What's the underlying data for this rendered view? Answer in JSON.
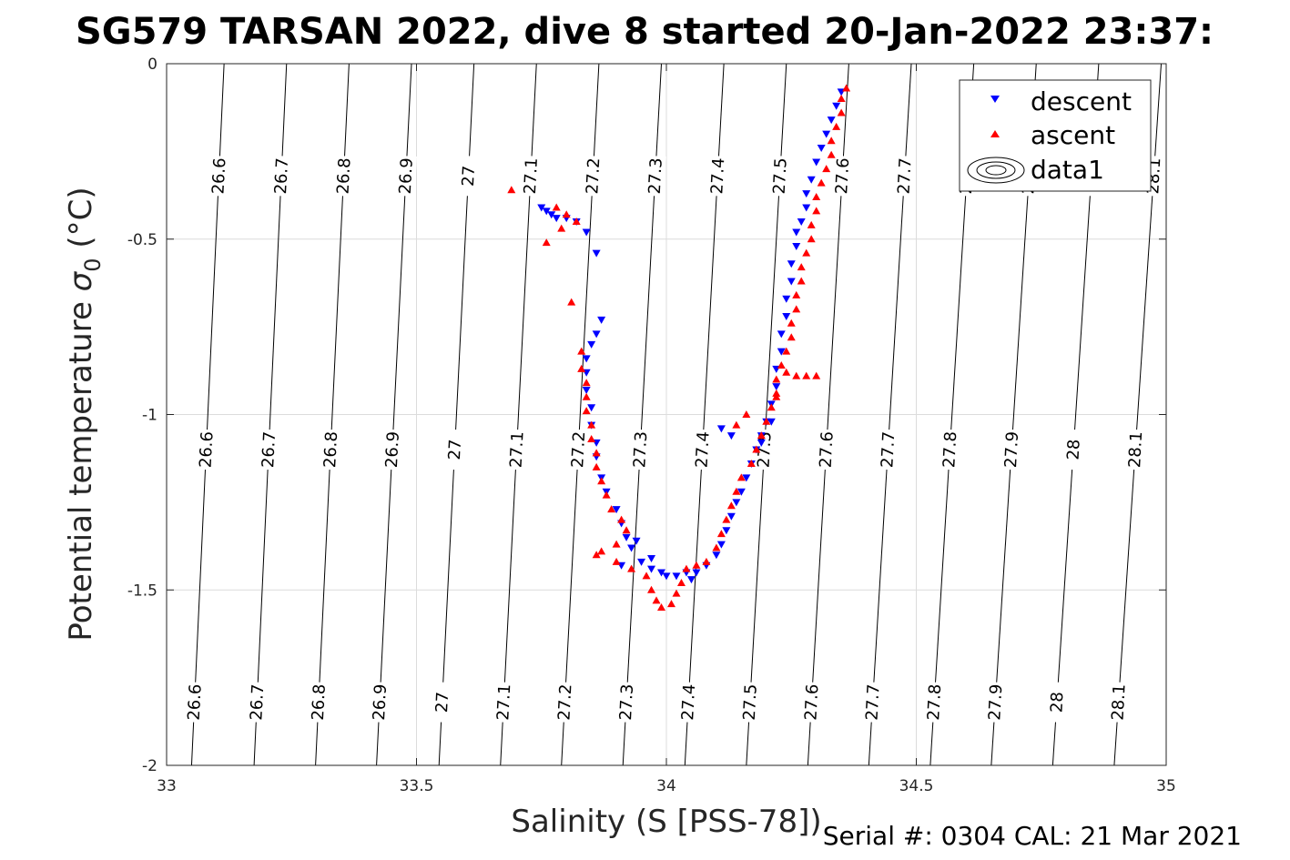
{
  "chart_data": {
    "type": "scatter",
    "title": "SG579 TARSAN 2022, dive 8 started 20-Jan-2022 23:37:",
    "xlabel": "Salinity (S [PSS-78])",
    "ylabel": "Potential temperature σ0 (°C)",
    "ylabel_main": "Potential temperature ",
    "ylabel_sigma": "σ",
    "ylabel_sub": "0",
    "ylabel_unit": " (°C)",
    "xlim": [
      33,
      35
    ],
    "ylim": [
      -2,
      0
    ],
    "xticks": [
      "33",
      "33.5",
      "34",
      "34.5",
      "35"
    ],
    "yticks": [
      "0",
      "-0.5",
      "-1",
      "-1.5",
      "-2"
    ],
    "grid": true,
    "legend_position": "top-right",
    "legend": [
      {
        "label": "descent",
        "marker": "down-triangle",
        "color": "#0000ff"
      },
      {
        "label": "ascent",
        "marker": "up-triangle",
        "color": "#ff0000"
      },
      {
        "label": "data1",
        "marker": "contour",
        "color": "#000000"
      }
    ],
    "isopycnals": [
      {
        "label": "26.6",
        "s_at_0": 33.115,
        "s_at_m2": 33.05
      },
      {
        "label": "26.7",
        "s_at_0": 33.24,
        "s_at_m2": 33.175
      },
      {
        "label": "26.8",
        "s_at_0": 33.365,
        "s_at_m2": 33.298
      },
      {
        "label": "26.9",
        "s_at_0": 33.49,
        "s_at_m2": 33.42
      },
      {
        "label": "27",
        "s_at_0": 33.615,
        "s_at_m2": 33.545
      },
      {
        "label": "27.1",
        "s_at_0": 33.74,
        "s_at_m2": 33.668
      },
      {
        "label": "27.2",
        "s_at_0": 33.865,
        "s_at_m2": 33.79
      },
      {
        "label": "27.3",
        "s_at_0": 33.99,
        "s_at_m2": 33.913
      },
      {
        "label": "27.4",
        "s_at_0": 34.115,
        "s_at_m2": 34.037
      },
      {
        "label": "27.5",
        "s_at_0": 34.24,
        "s_at_m2": 34.16
      },
      {
        "label": "27.6",
        "s_at_0": 34.365,
        "s_at_m2": 34.283
      },
      {
        "label": "27.7",
        "s_at_0": 34.49,
        "s_at_m2": 34.405
      },
      {
        "label": "27.8",
        "s_at_0": 34.615,
        "s_at_m2": 34.528
      },
      {
        "label": "27.9",
        "s_at_0": 34.74,
        "s_at_m2": 34.65
      },
      {
        "label": "28",
        "s_at_0": 34.865,
        "s_at_m2": 34.773
      },
      {
        "label": "28.1",
        "s_at_0": 34.99,
        "s_at_m2": 34.896
      }
    ],
    "isopycnal_label_rows_y": [
      -0.32,
      -1.1,
      -1.82
    ],
    "series": [
      {
        "name": "descent",
        "color": "#0000ff",
        "marker": "down-triangle",
        "points": [
          [
            33.75,
            -0.41
          ],
          [
            33.76,
            -0.42
          ],
          [
            33.77,
            -0.43
          ],
          [
            33.78,
            -0.44
          ],
          [
            33.8,
            -0.44
          ],
          [
            33.82,
            -0.45
          ],
          [
            33.84,
            -0.48
          ],
          [
            33.86,
            -0.54
          ],
          [
            33.87,
            -0.73
          ],
          [
            33.86,
            -0.77
          ],
          [
            33.85,
            -0.8
          ],
          [
            33.84,
            -0.84
          ],
          [
            33.84,
            -0.88
          ],
          [
            33.84,
            -0.93
          ],
          [
            33.85,
            -0.98
          ],
          [
            33.85,
            -1.03
          ],
          [
            33.86,
            -1.08
          ],
          [
            33.86,
            -1.12
          ],
          [
            33.87,
            -1.18
          ],
          [
            33.88,
            -1.22
          ],
          [
            33.9,
            -1.27
          ],
          [
            33.91,
            -1.31
          ],
          [
            33.92,
            -1.35
          ],
          [
            33.93,
            -1.38
          ],
          [
            33.95,
            -1.42
          ],
          [
            33.97,
            -1.44
          ],
          [
            33.99,
            -1.45
          ],
          [
            34.0,
            -1.46
          ],
          [
            34.02,
            -1.46
          ],
          [
            34.04,
            -1.45
          ],
          [
            34.06,
            -1.45
          ],
          [
            34.08,
            -1.43
          ],
          [
            34.1,
            -1.4
          ],
          [
            34.11,
            -1.37
          ],
          [
            34.12,
            -1.33
          ],
          [
            34.13,
            -1.29
          ],
          [
            34.14,
            -1.25
          ],
          [
            34.15,
            -1.22
          ],
          [
            34.16,
            -1.18
          ],
          [
            34.17,
            -1.14
          ],
          [
            34.18,
            -1.1
          ],
          [
            34.19,
            -1.06
          ],
          [
            34.2,
            -1.02
          ],
          [
            34.21,
            -0.97
          ],
          [
            34.22,
            -0.92
          ],
          [
            34.22,
            -0.87
          ],
          [
            34.23,
            -0.82
          ],
          [
            34.23,
            -0.77
          ],
          [
            34.24,
            -0.72
          ],
          [
            34.24,
            -0.67
          ],
          [
            34.25,
            -0.62
          ],
          [
            34.25,
            -0.57
          ],
          [
            34.26,
            -0.52
          ],
          [
            34.26,
            -0.48
          ],
          [
            34.27,
            -0.45
          ],
          [
            34.28,
            -0.41
          ],
          [
            34.28,
            -0.37
          ],
          [
            34.29,
            -0.33
          ],
          [
            34.3,
            -0.28
          ],
          [
            34.31,
            -0.24
          ],
          [
            34.32,
            -0.2
          ],
          [
            34.33,
            -0.16
          ],
          [
            34.34,
            -0.12
          ],
          [
            34.35,
            -0.08
          ],
          [
            34.11,
            -1.04
          ],
          [
            34.13,
            -1.06
          ],
          [
            34.21,
            -1.02
          ],
          [
            34.19,
            -1.08
          ],
          [
            33.97,
            -1.41
          ],
          [
            33.94,
            -1.36
          ],
          [
            33.91,
            -1.43
          ],
          [
            34.05,
            -1.47
          ]
        ]
      },
      {
        "name": "ascent",
        "color": "#ff0000",
        "marker": "up-triangle",
        "points": [
          [
            33.69,
            -0.36
          ],
          [
            33.76,
            -0.51
          ],
          [
            33.81,
            -0.68
          ],
          [
            33.79,
            -0.47
          ],
          [
            33.8,
            -0.43
          ],
          [
            33.82,
            -0.45
          ],
          [
            33.78,
            -0.41
          ],
          [
            33.83,
            -0.82
          ],
          [
            33.83,
            -0.87
          ],
          [
            33.84,
            -0.91
          ],
          [
            33.84,
            -0.95
          ],
          [
            33.84,
            -0.99
          ],
          [
            33.85,
            -1.03
          ],
          [
            33.85,
            -1.07
          ],
          [
            33.86,
            -1.11
          ],
          [
            33.86,
            -1.15
          ],
          [
            33.87,
            -1.19
          ],
          [
            33.88,
            -1.23
          ],
          [
            33.89,
            -1.27
          ],
          [
            33.91,
            -1.3
          ],
          [
            33.92,
            -1.33
          ],
          [
            33.9,
            -1.37
          ],
          [
            33.87,
            -1.39
          ],
          [
            33.86,
            -1.4
          ],
          [
            33.9,
            -1.42
          ],
          [
            33.93,
            -1.44
          ],
          [
            33.96,
            -1.46
          ],
          [
            33.97,
            -1.5
          ],
          [
            33.98,
            -1.53
          ],
          [
            33.99,
            -1.55
          ],
          [
            34.01,
            -1.54
          ],
          [
            34.02,
            -1.51
          ],
          [
            34.03,
            -1.48
          ],
          [
            34.04,
            -1.44
          ],
          [
            34.06,
            -1.43
          ],
          [
            34.08,
            -1.42
          ],
          [
            34.1,
            -1.38
          ],
          [
            34.11,
            -1.34
          ],
          [
            34.12,
            -1.3
          ],
          [
            34.13,
            -1.26
          ],
          [
            34.14,
            -1.22
          ],
          [
            34.15,
            -1.18
          ],
          [
            34.17,
            -1.14
          ],
          [
            34.18,
            -1.1
          ],
          [
            34.19,
            -1.06
          ],
          [
            34.2,
            -1.02
          ],
          [
            34.21,
            -0.98
          ],
          [
            34.22,
            -0.94
          ],
          [
            34.22,
            -0.9
          ],
          [
            34.23,
            -0.86
          ],
          [
            34.24,
            -0.82
          ],
          [
            34.25,
            -0.78
          ],
          [
            34.25,
            -0.74
          ],
          [
            34.26,
            -0.7
          ],
          [
            34.26,
            -0.66
          ],
          [
            34.27,
            -0.62
          ],
          [
            34.27,
            -0.58
          ],
          [
            34.28,
            -0.54
          ],
          [
            34.29,
            -0.5
          ],
          [
            34.29,
            -0.46
          ],
          [
            34.3,
            -0.42
          ],
          [
            34.3,
            -0.38
          ],
          [
            34.31,
            -0.34
          ],
          [
            34.32,
            -0.3
          ],
          [
            34.33,
            -0.26
          ],
          [
            34.33,
            -0.22
          ],
          [
            34.34,
            -0.18
          ],
          [
            34.35,
            -0.14
          ],
          [
            34.35,
            -0.1
          ],
          [
            34.36,
            -0.07
          ],
          [
            34.26,
            -0.89
          ],
          [
            34.28,
            -0.89
          ],
          [
            34.3,
            -0.89
          ],
          [
            34.24,
            -0.88
          ],
          [
            34.22,
            -0.95
          ],
          [
            34.14,
            -1.03
          ],
          [
            34.16,
            -1.0
          ]
        ]
      }
    ]
  },
  "footer": {
    "serial": "Serial #: 0304  CAL: 21 Mar 2021"
  }
}
